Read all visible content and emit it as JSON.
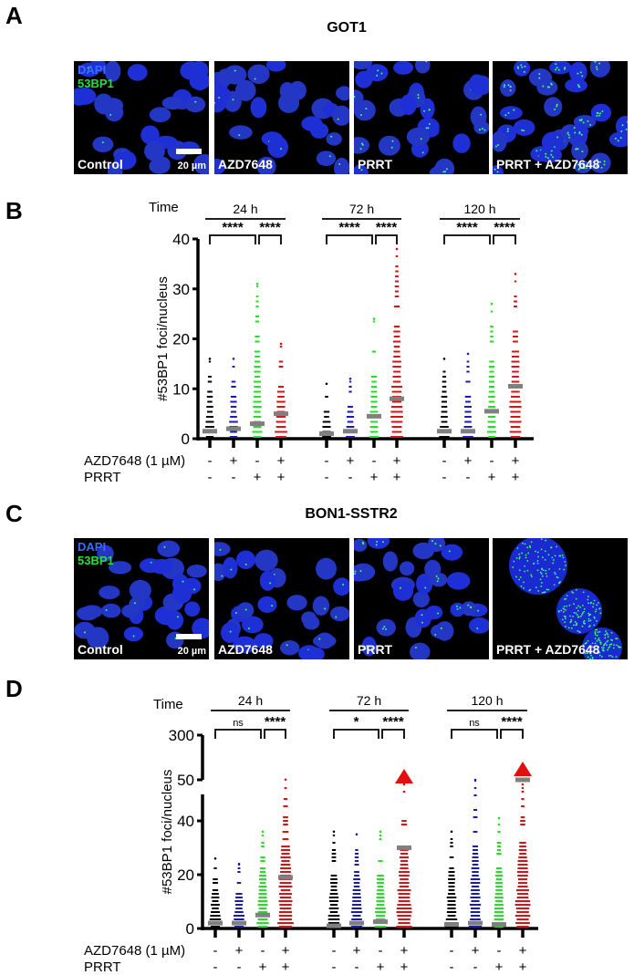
{
  "panels": {
    "A": {
      "letter": "A",
      "title": "GOT1"
    },
    "B": {
      "letter": "B"
    },
    "C": {
      "letter": "C",
      "title": "BON1-SSTR2"
    },
    "D": {
      "letter": "D"
    }
  },
  "micrographs": {
    "legend": {
      "dapi": "DAPI",
      "bp1": "53BP1"
    },
    "scale_bar": "20 µm",
    "conditions": [
      "Control",
      "AZD7648",
      "PRRT",
      "PRRT + AZD7648"
    ],
    "colors": {
      "nuclei": "#1f2fd6",
      "foci": "#3cff6a",
      "background": "#000000"
    }
  },
  "treatment_labels": {
    "time": "Time",
    "azd": "AZD7648 (1 µM)",
    "prrt": "PRRT",
    "azd_signs": [
      "-",
      "+",
      "-",
      "+"
    ],
    "prrt_signs": [
      "-",
      "-",
      "+",
      "+"
    ]
  },
  "chart_data": [
    {
      "panel": "B",
      "cell_line": "GOT1",
      "type": "scatter",
      "title": "",
      "ylabel": "#53BP1 foci/nucleus",
      "xlabel": "",
      "ylim": [
        0,
        40
      ],
      "yticks": [
        0,
        10,
        20,
        30,
        40
      ],
      "group_labels": [
        "24 h",
        "72 h",
        "120 h"
      ],
      "categories": [
        "Control",
        "AZD7648",
        "PRRT",
        "PRRT + AZD7648"
      ],
      "series_colors": [
        "#000000",
        "#1a1ab8",
        "#22e022",
        "#e01010"
      ],
      "median_color": "#808080",
      "groups": [
        {
          "time": "24 h",
          "medians": [
            1.5,
            2,
            3,
            5
          ],
          "max": [
            16,
            16,
            31,
            19
          ],
          "significance": [
            {
              "from": 0,
              "to": 2,
              "label": "****"
            },
            {
              "from": 2,
              "to": 3,
              "label": "****"
            }
          ]
        },
        {
          "time": "72 h",
          "medians": [
            1,
            1.5,
            4.5,
            8
          ],
          "max": [
            11,
            12,
            24,
            38
          ],
          "significance": [
            {
              "from": 0,
              "to": 2,
              "label": "****"
            },
            {
              "from": 2,
              "to": 3,
              "label": "****"
            }
          ]
        },
        {
          "time": "120 h",
          "medians": [
            1.5,
            1.5,
            5.5,
            10.5
          ],
          "max": [
            16,
            17,
            27,
            33
          ],
          "significance": [
            {
              "from": 0,
              "to": 2,
              "label": "****"
            },
            {
              "from": 2,
              "to": 3,
              "label": "****"
            }
          ]
        }
      ]
    },
    {
      "panel": "D",
      "cell_line": "BON1-SSTR2",
      "type": "scatter",
      "title": "",
      "ylabel": "#53BP1 foci/nucleus",
      "xlabel": "",
      "ylim": [
        0,
        300
      ],
      "axis_break": [
        50,
        300
      ],
      "yticks": [
        0,
        20,
        40,
        50,
        300
      ],
      "group_labels": [
        "24 h",
        "72 h",
        "120 h"
      ],
      "categories": [
        "Control",
        "AZD7648",
        "PRRT",
        "PRRT + AZD7648"
      ],
      "series_colors": [
        "#000000",
        "#1a1ab8",
        "#22e022",
        "#e01010"
      ],
      "median_color": "#808080",
      "groups": [
        {
          "time": "24 h",
          "medians": [
            2,
            2,
            5,
            19
          ],
          "max": [
            26,
            24,
            36,
            51
          ],
          "significance": [
            {
              "from": 0,
              "to": 2,
              "label": "ns"
            },
            {
              "from": 2,
              "to": 3,
              "label": "****"
            }
          ]
        },
        {
          "time": "72 h",
          "medians": [
            1,
            2,
            2.5,
            30
          ],
          "max": [
            36,
            35,
            36,
            300
          ],
          "significance": [
            {
              "from": 0,
              "to": 2,
              "label": "*"
            },
            {
              "from": 2,
              "to": 3,
              "label": "****"
            }
          ]
        },
        {
          "time": "120 h",
          "medians": [
            1.5,
            2,
            1.5,
            50
          ],
          "max": [
            36,
            50,
            41,
            300
          ],
          "significance": [
            {
              "from": 0,
              "to": 2,
              "label": "ns"
            },
            {
              "from": 2,
              "to": 3,
              "label": "****"
            }
          ]
        }
      ]
    }
  ]
}
